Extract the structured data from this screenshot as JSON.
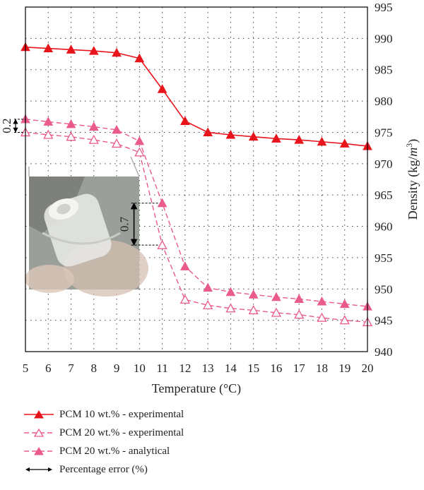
{
  "chart_data": {
    "type": "line",
    "xlabel": "Temperature (°C)",
    "ylabel_parts": [
      "Density (kg/",
      "m",
      "3",
      ")"
    ],
    "xlim": [
      5,
      20
    ],
    "ylim": [
      940,
      995
    ],
    "x_ticks": [
      5,
      6,
      7,
      8,
      9,
      10,
      11,
      12,
      13,
      14,
      15,
      16,
      17,
      18,
      19,
      20
    ],
    "y_ticks": [
      940,
      945,
      950,
      955,
      960,
      965,
      970,
      975,
      980,
      985,
      990,
      995
    ],
    "grid": true,
    "legend_position": "bottom",
    "series": [
      {
        "name": "PCM 10 wt.% - experimental",
        "color": "#e8141c",
        "line": "solid",
        "marker": "triangle-filled",
        "x": [
          5,
          6,
          7,
          8,
          9,
          10,
          11,
          12,
          13,
          14,
          15,
          16,
          17,
          18,
          19,
          20
        ],
        "y": [
          988.6,
          988.4,
          988.2,
          988.0,
          987.7,
          986.8,
          981.9,
          976.8,
          975.0,
          974.6,
          974.3,
          974.0,
          973.8,
          973.5,
          973.2,
          972.8
        ]
      },
      {
        "name": "PCM 20 wt.% - experimental",
        "color": "#ea5b8a",
        "line": "dashed",
        "marker": "triangle-open",
        "x": [
          5,
          6,
          7,
          8,
          9,
          10,
          11,
          12,
          13,
          14,
          15,
          16,
          17,
          18,
          19,
          20
        ],
        "y": [
          975.0,
          974.6,
          974.3,
          973.8,
          973.2,
          971.8,
          957.0,
          948.3,
          947.4,
          946.9,
          946.6,
          946.2,
          945.9,
          945.4,
          945.0,
          944.7
        ]
      },
      {
        "name": "PCM 20 wt.% - analytical",
        "color": "#ea5b8a",
        "line": "dashed",
        "marker": "triangle-filled",
        "x": [
          5,
          6,
          7,
          8,
          9,
          10,
          11,
          12,
          13,
          14,
          15,
          16,
          17,
          18,
          19,
          20
        ],
        "y": [
          977.1,
          976.7,
          976.3,
          975.9,
          975.4,
          973.6,
          963.7,
          953.6,
          950.2,
          949.5,
          949.1,
          948.7,
          948.4,
          948.0,
          947.6,
          947.2
        ]
      }
    ],
    "annotations": [
      {
        "label": "0.2",
        "x": 5,
        "y_from": 977.1,
        "y_to": 975.0
      },
      {
        "label": "0.7",
        "x": 11,
        "y_from": 963.7,
        "y_to": 957.0
      }
    ],
    "error_legend": "Percentage error (%)"
  }
}
